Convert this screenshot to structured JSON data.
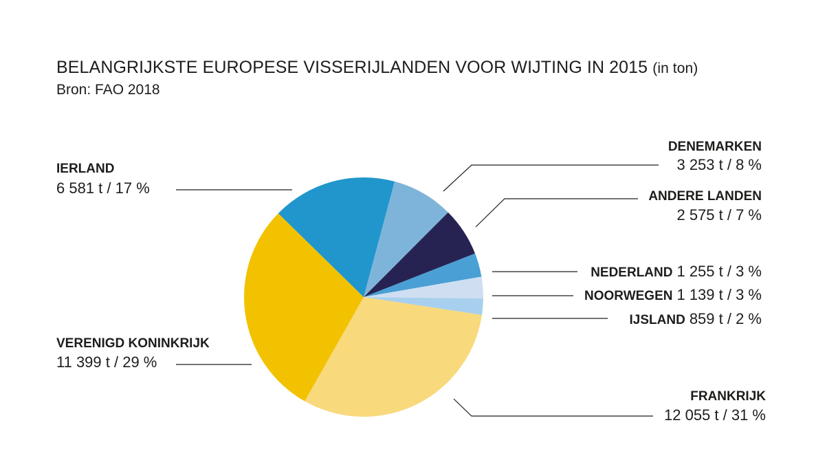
{
  "title": "BELANGRIJKSTE EUROPESE VISSERIJLANDEN VOOR WIJTING IN 2015",
  "title_unit": "(in ton)",
  "source": "Bron: FAO 2018",
  "chart_data": {
    "type": "pie",
    "start_angle_deg": -75,
    "direction": "clockwise",
    "slices": [
      {
        "name": "DENEMARKEN",
        "value": 3253,
        "value_label": "3 253 t / 8 %",
        "color": "#7fb4da"
      },
      {
        "name": "ANDERE LANDEN",
        "value": 2575,
        "value_label": "2 575 t / 7 %",
        "color": "#262353"
      },
      {
        "name": "NEDERLAND",
        "value": 1255,
        "value_label": "1 255 t / 3 %",
        "color": "#4aa0d4"
      },
      {
        "name": "NOORWEGEN",
        "value": 1139,
        "value_label": "1 139 t / 3 %",
        "color": "#cfdff1"
      },
      {
        "name": "IJSLAND",
        "value": 859,
        "value_label": "859 t / 2 %",
        "color": "#a8d0ee"
      },
      {
        "name": "FRANKRIJK",
        "value": 12055,
        "value_label": "12 055 t / 31 %",
        "color": "#f8d97c"
      },
      {
        "name": "VERENIGD KONINKRIJK",
        "value": 11399,
        "value_label": "11 399 t / 29 %",
        "color": "#f2c200"
      },
      {
        "name": "IERLAND",
        "value": 6581,
        "value_label": "6 581 t / 17 %",
        "color": "#2196cc"
      }
    ]
  }
}
